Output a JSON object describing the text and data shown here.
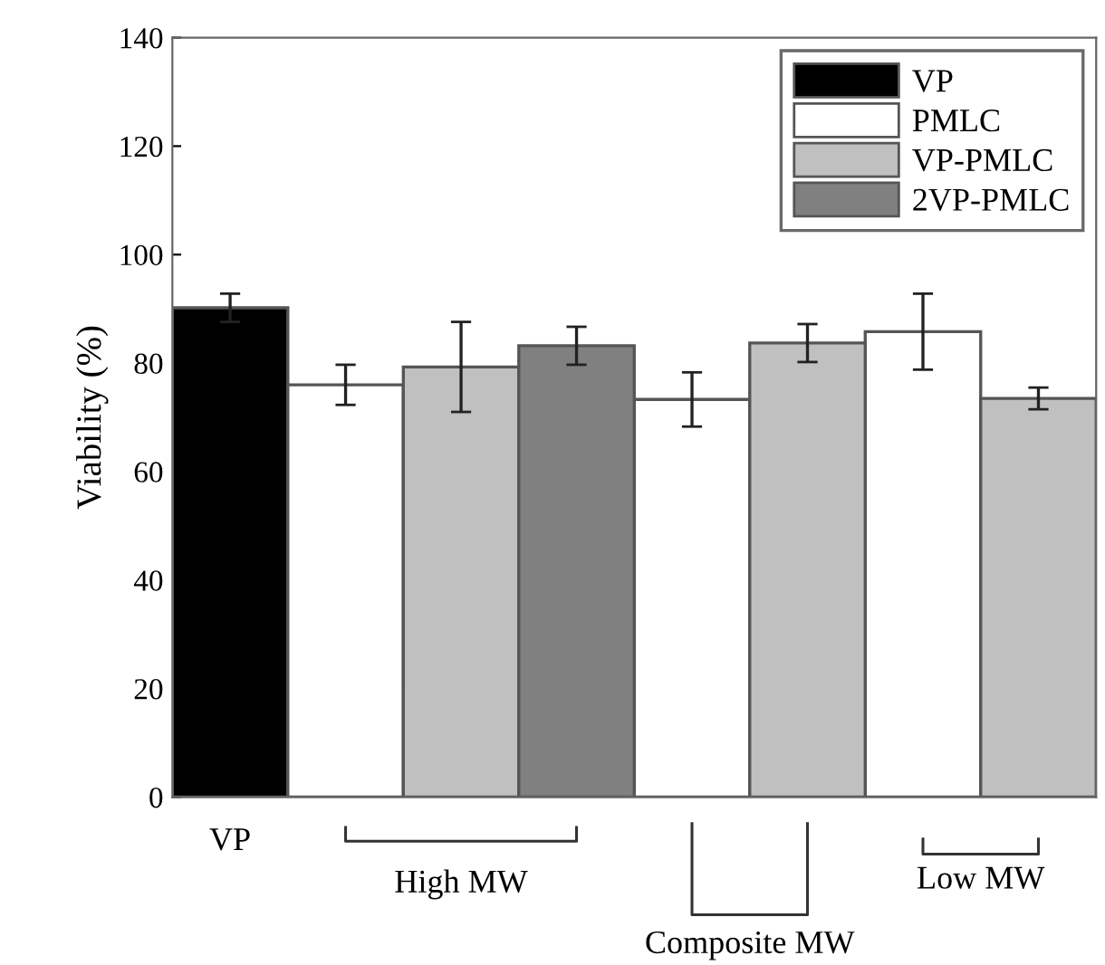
{
  "chart_data": {
    "type": "bar",
    "ylabel": "Viability (%)",
    "categories": [
      "VP",
      null,
      null,
      null,
      null,
      null,
      null,
      null
    ],
    "series": [
      {
        "name": "VP",
        "color": "#000000",
        "values": [
          90.2,
          null,
          null,
          null,
          null,
          null,
          null,
          null
        ],
        "errors": [
          2.6,
          null,
          null,
          null,
          null,
          null,
          null,
          null
        ]
      },
      {
        "name": "PMLC",
        "color": "#ffffff",
        "values": [
          null,
          76,
          null,
          null,
          73.3,
          null,
          85.8,
          null
        ],
        "errors": [
          null,
          3.7,
          null,
          null,
          5,
          null,
          7,
          null
        ]
      },
      {
        "name": "VP-PMLC",
        "color": "#c0c0c0",
        "values": [
          null,
          null,
          79.3,
          null,
          null,
          83.7,
          null,
          73.5
        ],
        "errors": [
          null,
          null,
          8.3,
          null,
          null,
          3.5,
          null,
          2
        ]
      },
      {
        "name": "2VP-PMLC",
        "color": "#808080",
        "values": [
          null,
          null,
          null,
          83.2,
          null,
          null,
          null,
          null
        ],
        "errors": [
          null,
          null,
          null,
          3.5,
          null,
          null,
          null,
          null
        ]
      }
    ],
    "ylim": [
      0,
      140
    ],
    "yticks": [
      0,
      20,
      40,
      60,
      80,
      100,
      120,
      140
    ],
    "legend": "top right",
    "grid": false,
    "annotations": [
      "High MW",
      "Composite MW",
      "Low MW"
    ]
  }
}
